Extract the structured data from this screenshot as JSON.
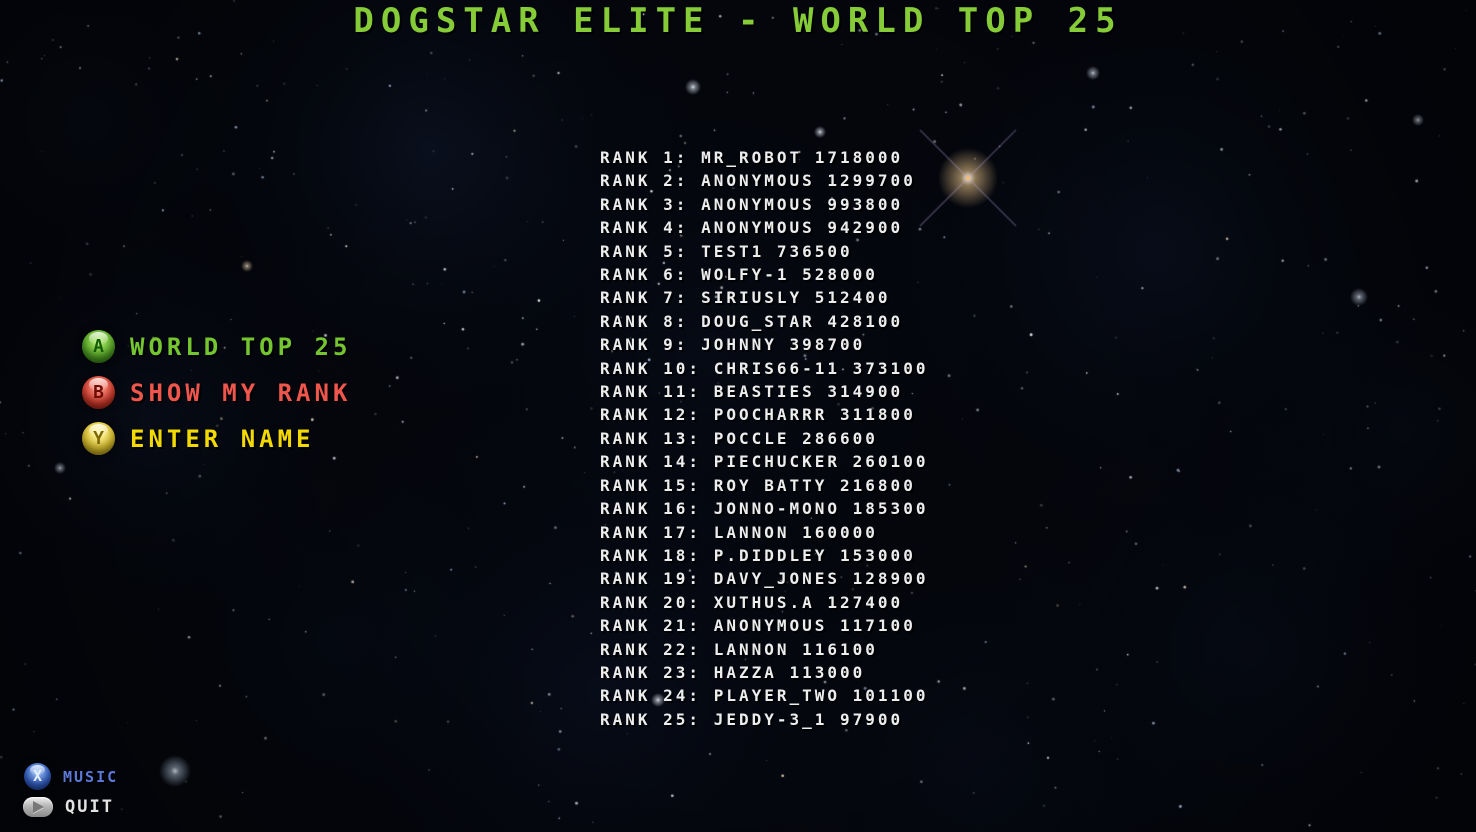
{
  "title": "DOGSTAR ELITE - WORLD TOP 25",
  "colors": {
    "title_green": "#85cc38",
    "menu_green": "#74c52f",
    "menu_red": "#ef564c",
    "menu_yellow": "#f2d900",
    "music_blue": "#5b79d9",
    "quit_white": "#e2e2e2",
    "list_white": "#ededed"
  },
  "menu": {
    "items": [
      {
        "button": "A",
        "button_color": "green",
        "label": "WORLD TOP 25",
        "color": "#74c52f"
      },
      {
        "button": "B",
        "button_color": "red",
        "label": "SHOW MY RANK",
        "color": "#ef564c"
      },
      {
        "button": "Y",
        "button_color": "yellow",
        "label": "ENTER NAME",
        "color": "#f2d900"
      }
    ]
  },
  "footer": {
    "items": [
      {
        "button": "X",
        "style": "gem-blue",
        "label": "MUSIC",
        "color": "#5b79d9"
      },
      {
        "button": "play",
        "style": "pill",
        "label": "QUIT",
        "color": "#e2e2e2"
      }
    ]
  },
  "leaderboard": {
    "rank_label": "RANK",
    "entries": [
      {
        "rank": 1,
        "name": "MR_ROBOT",
        "score": 1718000
      },
      {
        "rank": 2,
        "name": "ANONYMOUS",
        "score": 1299700
      },
      {
        "rank": 3,
        "name": "ANONYMOUS",
        "score": 993800
      },
      {
        "rank": 4,
        "name": "ANONYMOUS",
        "score": 942900
      },
      {
        "rank": 5,
        "name": "TEST1",
        "score": 736500
      },
      {
        "rank": 6,
        "name": "WOLFY-1",
        "score": 528000
      },
      {
        "rank": 7,
        "name": "SIRIUSLY",
        "score": 512400
      },
      {
        "rank": 8,
        "name": "DOUG_STAR",
        "score": 428100
      },
      {
        "rank": 9,
        "name": "JOHNNY",
        "score": 398700
      },
      {
        "rank": 10,
        "name": "CHRIS66-11",
        "score": 373100
      },
      {
        "rank": 11,
        "name": "BEASTIES",
        "score": 314900
      },
      {
        "rank": 12,
        "name": "POOCHARRR",
        "score": 311800
      },
      {
        "rank": 13,
        "name": "POCCLE",
        "score": 286600
      },
      {
        "rank": 14,
        "name": "PIECHUCKER",
        "score": 260100
      },
      {
        "rank": 15,
        "name": "ROY BATTY",
        "score": 216800
      },
      {
        "rank": 16,
        "name": "JONNO-MONO",
        "score": 185300
      },
      {
        "rank": 17,
        "name": "LANNON",
        "score": 160000
      },
      {
        "rank": 18,
        "name": "P.DIDDLEY",
        "score": 153000
      },
      {
        "rank": 19,
        "name": "DAVY_JONES",
        "score": 128900
      },
      {
        "rank": 20,
        "name": "XUTHUS.A",
        "score": 127400
      },
      {
        "rank": 21,
        "name": "ANONYMOUS",
        "score": 117100
      },
      {
        "rank": 22,
        "name": "LANNON",
        "score": 116100
      },
      {
        "rank": 23,
        "name": "HAZZA",
        "score": 113000
      },
      {
        "rank": 24,
        "name": "PLAYER_TWO",
        "score": 101100
      },
      {
        "rank": 25,
        "name": "JEDDY-3_1",
        "score": 97900
      }
    ]
  }
}
